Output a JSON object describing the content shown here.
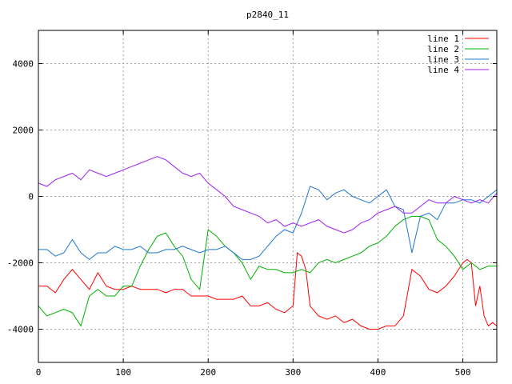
{
  "chart_data": {
    "type": "line",
    "title": "p2840_11",
    "xlabel": "",
    "ylabel": "",
    "xlim": [
      0,
      540
    ],
    "ylim": [
      -5000,
      5000
    ],
    "xticks": [
      0,
      100,
      200,
      300,
      400,
      500
    ],
    "yticks": [
      -4000,
      -2000,
      0,
      2000,
      4000
    ],
    "grid": true,
    "legend_position": "top-right",
    "series": [
      {
        "name": "line 1",
        "color": "#ff0000",
        "x": [
          0,
          10,
          20,
          30,
          40,
          50,
          60,
          70,
          80,
          90,
          100,
          110,
          120,
          130,
          140,
          150,
          160,
          170,
          180,
          190,
          200,
          210,
          220,
          230,
          240,
          250,
          260,
          270,
          280,
          290,
          300,
          305,
          310,
          315,
          320,
          330,
          340,
          350,
          360,
          370,
          380,
          390,
          400,
          410,
          420,
          430,
          440,
          450,
          460,
          470,
          480,
          490,
          500,
          505,
          510,
          515,
          520,
          525,
          530,
          535,
          540
        ],
        "values": [
          -2700,
          -2700,
          -2900,
          -2500,
          -2200,
          -2500,
          -2800,
          -2300,
          -2700,
          -2800,
          -2800,
          -2700,
          -2800,
          -2800,
          -2800,
          -2900,
          -2800,
          -2800,
          -3000,
          -3000,
          -3000,
          -3100,
          -3100,
          -3100,
          -3000,
          -3300,
          -3300,
          -3200,
          -3400,
          -3500,
          -3300,
          -1700,
          -1800,
          -2200,
          -3300,
          -3600,
          -3700,
          -3600,
          -3800,
          -3700,
          -3900,
          -4000,
          -4000,
          -3900,
          -3900,
          -3600,
          -2200,
          -2400,
          -2800,
          -2900,
          -2700,
          -2400,
          -2000,
          -1900,
          -2000,
          -3300,
          -2700,
          -3600,
          -3900,
          -3800,
          -3900
        ]
      },
      {
        "name": "line 2",
        "color": "#00b000",
        "x": [
          0,
          10,
          20,
          30,
          40,
          50,
          60,
          70,
          80,
          90,
          100,
          110,
          120,
          130,
          140,
          150,
          160,
          170,
          180,
          190,
          200,
          210,
          220,
          230,
          240,
          250,
          260,
          270,
          280,
          290,
          300,
          310,
          320,
          330,
          340,
          350,
          360,
          370,
          380,
          390,
          400,
          410,
          420,
          430,
          440,
          450,
          460,
          470,
          480,
          490,
          500,
          510,
          520,
          530,
          540
        ],
        "values": [
          -3300,
          -3600,
          -3500,
          -3400,
          -3500,
          -3900,
          -3000,
          -2800,
          -3000,
          -3000,
          -2700,
          -2700,
          -2100,
          -1600,
          -1200,
          -1100,
          -1500,
          -1800,
          -2500,
          -2800,
          -1000,
          -1200,
          -1500,
          -1700,
          -2000,
          -2500,
          -2100,
          -2200,
          -2200,
          -2300,
          -2300,
          -2200,
          -2300,
          -2000,
          -1900,
          -2000,
          -1900,
          -1800,
          -1700,
          -1500,
          -1400,
          -1200,
          -900,
          -700,
          -600,
          -600,
          -700,
          -1300,
          -1500,
          -1800,
          -2200,
          -2000,
          -2200,
          -2100,
          -2100
        ]
      },
      {
        "name": "line 3",
        "color": "#1e78d2",
        "x": [
          0,
          10,
          20,
          30,
          40,
          50,
          60,
          70,
          80,
          90,
          100,
          110,
          120,
          130,
          140,
          150,
          160,
          170,
          180,
          190,
          200,
          210,
          220,
          230,
          240,
          250,
          260,
          270,
          280,
          290,
          300,
          310,
          320,
          330,
          340,
          350,
          360,
          370,
          380,
          390,
          400,
          410,
          420,
          430,
          440,
          450,
          460,
          470,
          480,
          490,
          500,
          510,
          520,
          530,
          540
        ],
        "values": [
          -1600,
          -1600,
          -1800,
          -1700,
          -1300,
          -1700,
          -1900,
          -1700,
          -1700,
          -1500,
          -1600,
          -1600,
          -1500,
          -1700,
          -1700,
          -1600,
          -1600,
          -1500,
          -1600,
          -1700,
          -1600,
          -1600,
          -1500,
          -1700,
          -1900,
          -1900,
          -1800,
          -1500,
          -1200,
          -1000,
          -1100,
          -500,
          300,
          200,
          -100,
          100,
          200,
          0,
          -100,
          -200,
          0,
          200,
          -300,
          -400,
          -1700,
          -600,
          -500,
          -700,
          -200,
          -200,
          -100,
          -100,
          -200,
          0,
          200
        ]
      },
      {
        "name": "line 4",
        "color": "#a020f0",
        "x": [
          0,
          10,
          20,
          30,
          40,
          50,
          60,
          70,
          80,
          90,
          100,
          110,
          120,
          130,
          140,
          150,
          160,
          170,
          180,
          190,
          200,
          210,
          220,
          230,
          240,
          250,
          260,
          270,
          280,
          290,
          300,
          310,
          320,
          330,
          340,
          350,
          360,
          370,
          380,
          390,
          400,
          410,
          420,
          430,
          440,
          450,
          460,
          470,
          480,
          490,
          500,
          510,
          520,
          530,
          540
        ],
        "values": [
          400,
          300,
          500,
          600,
          700,
          500,
          800,
          700,
          600,
          700,
          800,
          900,
          1000,
          1100,
          1200,
          1100,
          900,
          700,
          600,
          700,
          400,
          200,
          0,
          -300,
          -400,
          -500,
          -600,
          -800,
          -700,
          -900,
          -800,
          -900,
          -800,
          -700,
          -900,
          -1000,
          -1100,
          -1000,
          -800,
          -700,
          -500,
          -400,
          -300,
          -500,
          -500,
          -300,
          -100,
          -200,
          -200,
          0,
          -100,
          -200,
          -100,
          -200,
          100
        ]
      }
    ]
  }
}
